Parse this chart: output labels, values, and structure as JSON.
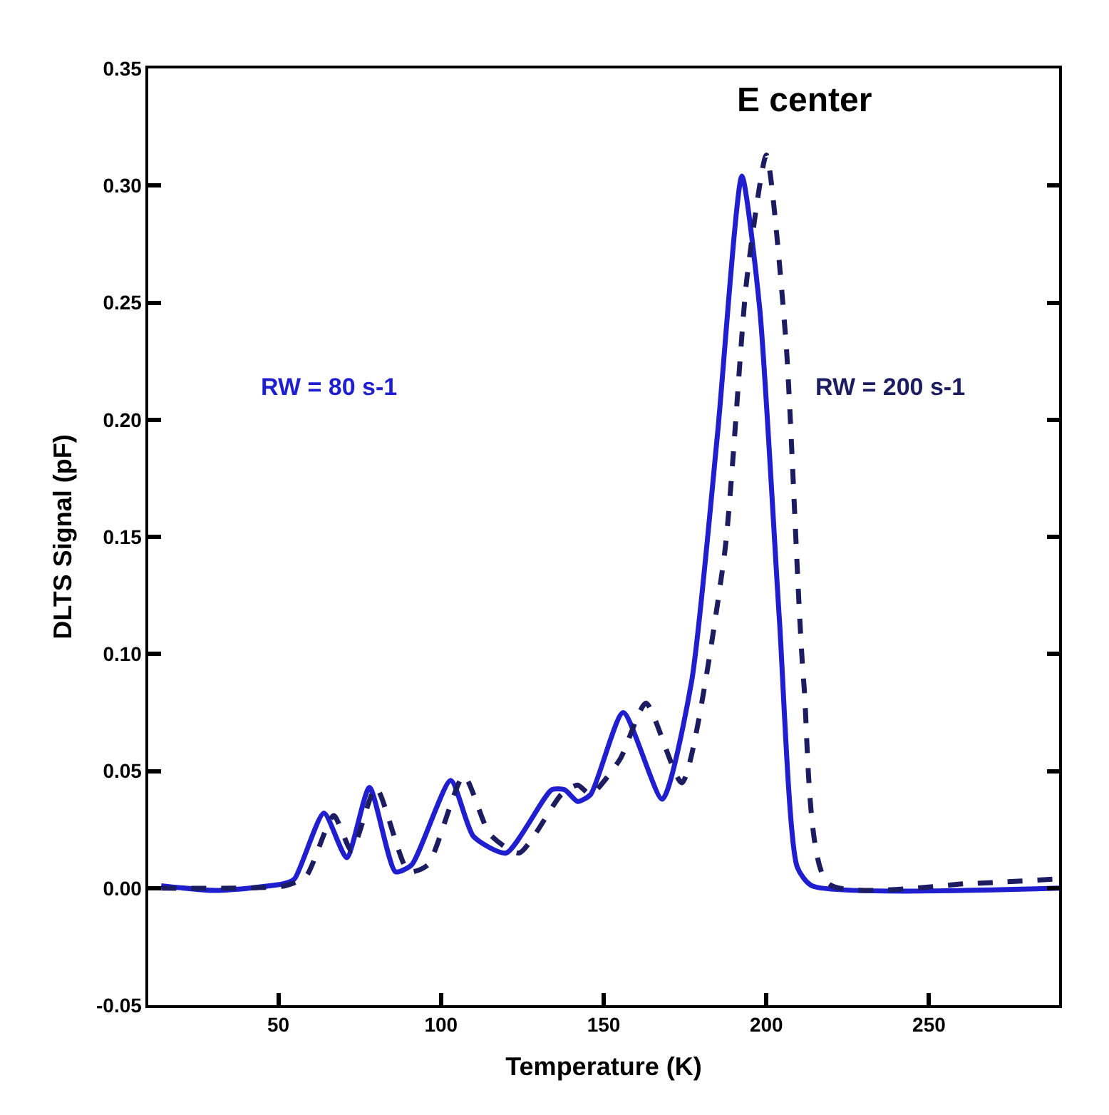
{
  "chart_data": {
    "type": "line",
    "xlabel": "Temperature (K)",
    "ylabel": "DLTS Signal (pF)",
    "xlim": [
      10,
      290
    ],
    "xticks": [
      50,
      100,
      150,
      200,
      250
    ],
    "ylim": [
      -0.05,
      0.35
    ],
    "yticks": [
      {
        "value": -0.05,
        "label": "-0.05"
      },
      {
        "value": 0,
        "label": "0.00"
      },
      {
        "value": 0.05,
        "label": "0.05"
      },
      {
        "value": 0.1,
        "label": "0.10"
      },
      {
        "value": 0.15,
        "label": "0.15"
      },
      {
        "value": 0.2,
        "label": "0.20"
      },
      {
        "value": 0.25,
        "label": "0.25"
      },
      {
        "value": 0.3,
        "label": "0.30"
      },
      {
        "value": 0.35,
        "label": "0.35"
      }
    ],
    "legend": false,
    "marker": "none",
    "annotations": [
      "E center"
    ],
    "series": [
      {
        "name": "RW = 80 s-1",
        "color": "#1f1fd0",
        "line_style": "solid",
        "x": [
          14,
          31,
          52,
          55,
          64,
          71,
          78,
          86,
          91,
          103,
          110,
          120,
          134,
          138,
          142,
          146,
          156,
          168,
          177,
          185,
          192.5,
          198,
          204,
          209.5,
          214,
          290
        ],
        "values": [
          0.001,
          -0.001,
          0.002,
          0.004,
          0.032,
          0.013,
          0.043,
          0.007,
          0.01,
          0.046,
          0.022,
          0.015,
          0.042,
          0.042,
          0.037,
          0.04,
          0.075,
          0.038,
          0.088,
          0.194,
          0.304,
          0.247,
          0.115,
          0.009,
          0.001,
          0.0
        ]
      },
      {
        "name": "RW = 200 s-1",
        "color": "#1c1c60",
        "line_style": "dashed",
        "x": [
          14,
          52,
          58.5,
          67,
          72.5,
          80,
          90,
          96,
          107,
          115,
          124,
          137,
          142,
          146,
          155,
          163,
          174,
          187,
          194,
          200,
          206,
          211.5,
          219,
          263,
          290
        ],
        "values": [
          0.0,
          0.001,
          0.005,
          0.031,
          0.016,
          0.043,
          0.007,
          0.01,
          0.048,
          0.023,
          0.015,
          0.04,
          0.044,
          0.04,
          0.055,
          0.079,
          0.045,
          0.141,
          0.26,
          0.313,
          0.234,
          0.088,
          0.002,
          0.002,
          0.004
        ]
      }
    ]
  }
}
